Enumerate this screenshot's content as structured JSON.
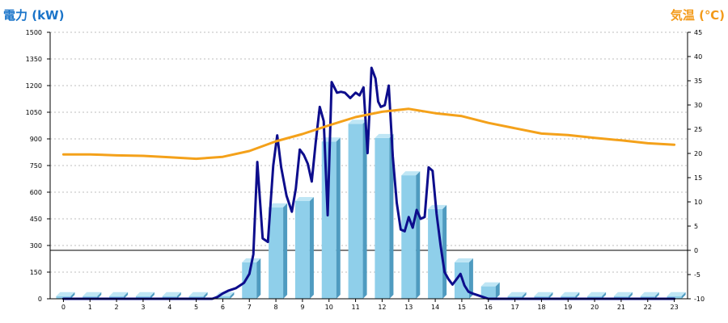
{
  "chart_data": {
    "type": "bar",
    "left_axis_label": "電力 (kW)",
    "right_axis_label": "気温 (℃)",
    "categories": [
      "0",
      "1",
      "2",
      "3",
      "4",
      "5",
      "6",
      "7",
      "8",
      "9",
      "10",
      "11",
      "12",
      "13",
      "14",
      "15",
      "16",
      "17",
      "18",
      "19",
      "20",
      "21",
      "22",
      "23"
    ],
    "left_ylim": [
      0,
      1500
    ],
    "left_ticks": [
      0,
      150,
      300,
      450,
      600,
      750,
      900,
      1050,
      1200,
      1350,
      1500
    ],
    "right_ylim": [
      -10,
      45
    ],
    "right_ticks": [
      -10,
      -5,
      0,
      5,
      10,
      15,
      20,
      25,
      30,
      35,
      40,
      45
    ],
    "grid": true,
    "series": [
      {
        "kind": "bar",
        "axis": "left",
        "values": [
          15,
          15,
          15,
          15,
          15,
          15,
          15,
          205,
          515,
          550,
          885,
          985,
          905,
          695,
          505,
          205,
          70,
          15,
          15,
          15,
          15,
          15,
          15,
          15
        ],
        "color": "#8fcfea"
      },
      {
        "kind": "line",
        "axis": "left",
        "color": "#0d0d8c",
        "x": [
          0,
          1,
          2,
          3,
          4,
          5,
          5.6,
          5.8,
          6,
          6.2,
          6.5,
          6.8,
          7,
          7.15,
          7.3,
          7.5,
          7.7,
          7.9,
          8.05,
          8.2,
          8.4,
          8.6,
          8.75,
          8.9,
          9.05,
          9.2,
          9.35,
          9.5,
          9.65,
          9.8,
          9.95,
          10.1,
          10.3,
          10.45,
          10.6,
          10.8,
          11,
          11.15,
          11.3,
          11.45,
          11.6,
          11.75,
          11.85,
          11.95,
          12.1,
          12.25,
          12.4,
          12.55,
          12.7,
          12.85,
          13,
          13.15,
          13.3,
          13.45,
          13.6,
          13.75,
          13.9,
          14.05,
          14.2,
          14.35,
          14.5,
          14.65,
          14.8,
          14.95,
          15.1,
          15.25,
          15.4,
          15.6,
          15.8,
          16,
          16.3,
          16.6,
          17,
          18,
          19,
          20,
          21,
          22,
          23
        ],
        "values": [
          0,
          0,
          0,
          0,
          0,
          0,
          0,
          10,
          30,
          45,
          60,
          90,
          140,
          250,
          770,
          340,
          320,
          750,
          920,
          740,
          580,
          490,
          620,
          840,
          810,
          760,
          660,
          880,
          1080,
          1000,
          470,
          1220,
          1160,
          1165,
          1160,
          1130,
          1160,
          1145,
          1190,
          820,
          1300,
          1240,
          1110,
          1080,
          1090,
          1200,
          800,
          540,
          390,
          380,
          460,
          400,
          500,
          450,
          460,
          740,
          720,
          480,
          300,
          150,
          110,
          80,
          110,
          140,
          75,
          40,
          30,
          20,
          10,
          0,
          0,
          0,
          0,
          0,
          0,
          0,
          0,
          0,
          0
        ]
      },
      {
        "kind": "line",
        "axis": "right",
        "color": "#f4a11a",
        "x": [
          0,
          1,
          2,
          3,
          4,
          5,
          6,
          7,
          8,
          9,
          10,
          11,
          12,
          13,
          14,
          15,
          16,
          17,
          18,
          19,
          20,
          21,
          22,
          23
        ],
        "values": [
          19.8,
          19.8,
          19.6,
          19.5,
          19.2,
          18.9,
          19.3,
          20.5,
          22.5,
          24,
          25.8,
          27.5,
          28.6,
          29.2,
          28.3,
          27.7,
          26.3,
          25.2,
          24.1,
          23.8,
          23.2,
          22.7,
          22.1,
          21.8
        ]
      }
    ]
  }
}
